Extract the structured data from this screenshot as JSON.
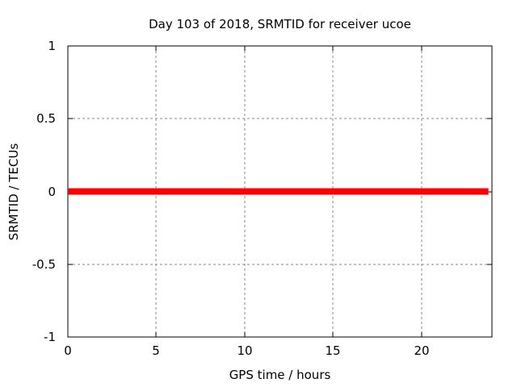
{
  "chart_data": {
    "type": "line",
    "title": "Day 103 of 2018, SRMTID for receiver ucoe",
    "xlabel": "GPS time / hours",
    "ylabel": "SRMTID / TECUs",
    "xlim": [
      0,
      24
    ],
    "ylim": [
      -1,
      1
    ],
    "xticks": [
      0,
      5,
      10,
      15,
      20
    ],
    "yticks": [
      -1,
      -0.5,
      0,
      0.5,
      1
    ],
    "grid": true,
    "grid_style": "dotted",
    "legend_position": "none",
    "series": [
      {
        "name": "SRMTID",
        "color": "#ff0000",
        "line_width": 8,
        "x": [
          0,
          23.8
        ],
        "y": [
          0,
          0
        ]
      }
    ],
    "colors": {
      "background": "#ffffff",
      "axis": "#000000",
      "grid": "#8a8a8a",
      "text": "#000000"
    }
  }
}
